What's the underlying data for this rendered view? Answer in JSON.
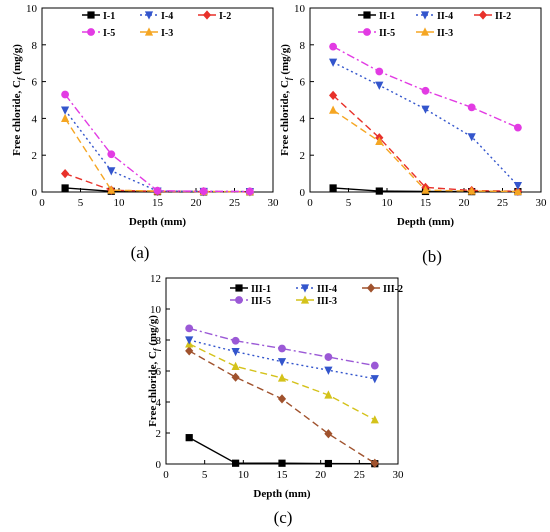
{
  "chart_data": [
    {
      "panel_label": "(a)",
      "type": "line",
      "xlabel": "Depth (mm)",
      "ylabel_main": "Free chloride, C",
      "ylabel_sub": "f",
      "ylabel_unit": " (mg/g)",
      "xlim": [
        0,
        30
      ],
      "ylim": [
        0,
        10
      ],
      "xticks": [
        0,
        5,
        10,
        15,
        20,
        25,
        30
      ],
      "yticks": [
        0,
        2,
        4,
        6,
        8,
        10
      ],
      "legend": "top-right",
      "x": [
        3,
        9,
        15,
        21,
        27
      ],
      "series": [
        {
          "name": "I-1",
          "color": "#000000",
          "marker": "square",
          "dash": "solid",
          "values": [
            0.22,
            0.04,
            0.02,
            0.01,
            0.01
          ]
        },
        {
          "name": "I-2",
          "color": "#e8312a",
          "marker": "diamond",
          "dash": "dash",
          "values": [
            1.0,
            0.1,
            0.03,
            0.02,
            0.01
          ]
        },
        {
          "name": "I-3",
          "color": "#f5a623",
          "marker": "triangle-up",
          "dash": "dash",
          "values": [
            4.0,
            0.1,
            0.05,
            0.03,
            0.02
          ]
        },
        {
          "name": "I-4",
          "color": "#3355cc",
          "marker": "triangle-down",
          "dash": "dot",
          "values": [
            4.45,
            1.15,
            0.05,
            0.03,
            0.02
          ]
        },
        {
          "name": "I-5",
          "color": "#e23be3",
          "marker": "circle",
          "dash": "dashdot",
          "values": [
            5.3,
            2.05,
            0.07,
            0.04,
            0.03
          ]
        }
      ]
    },
    {
      "panel_label": "(b)",
      "type": "line",
      "xlabel": "Depth (mm)",
      "ylabel_main": "Free chloride, C",
      "ylabel_sub": "f",
      "ylabel_unit": " (mg/g)",
      "xlim": [
        0,
        30
      ],
      "ylim": [
        0,
        10
      ],
      "xticks": [
        0,
        5,
        10,
        15,
        20,
        25,
        30
      ],
      "yticks": [
        0,
        2,
        4,
        6,
        8,
        10
      ],
      "legend": "top-right",
      "x": [
        3,
        9,
        15,
        21,
        27
      ],
      "series": [
        {
          "name": "II-1",
          "color": "#000000",
          "marker": "square",
          "dash": "solid",
          "values": [
            0.22,
            0.05,
            0.03,
            0.02,
            0.02
          ]
        },
        {
          "name": "II-2",
          "color": "#e8312a",
          "marker": "diamond",
          "dash": "dash",
          "values": [
            5.25,
            2.95,
            0.25,
            0.08,
            0.04
          ]
        },
        {
          "name": "II-3",
          "color": "#f5a623",
          "marker": "triangle-up",
          "dash": "dash",
          "values": [
            4.45,
            2.75,
            0.1,
            0.05,
            0.03
          ]
        },
        {
          "name": "II-4",
          "color": "#3355cc",
          "marker": "triangle-down",
          "dash": "dot",
          "values": [
            7.05,
            5.8,
            4.5,
            3.0,
            0.35
          ]
        },
        {
          "name": "II-5",
          "color": "#e23be3",
          "marker": "circle",
          "dash": "dashdot",
          "values": [
            7.9,
            6.55,
            5.5,
            4.6,
            3.5
          ]
        }
      ]
    },
    {
      "panel_label": "(c)",
      "type": "line",
      "xlabel": "Depth (mm)",
      "ylabel_main": "Free chloride, C",
      "ylabel_sub": "f",
      "ylabel_unit": " (mg/g)",
      "xlim": [
        0,
        30
      ],
      "ylim": [
        0,
        12
      ],
      "xticks": [
        0,
        5,
        10,
        15,
        20,
        25,
        30
      ],
      "yticks": [
        0,
        2,
        4,
        6,
        8,
        10,
        12
      ],
      "legend": "top-right",
      "x": [
        3,
        9,
        15,
        21,
        27
      ],
      "series": [
        {
          "name": "III-1",
          "color": "#000000",
          "marker": "square",
          "dash": "solid",
          "values": [
            1.7,
            0.05,
            0.05,
            0.03,
            0.02
          ]
        },
        {
          "name": "III-2",
          "color": "#a0522d",
          "marker": "diamond",
          "dash": "dash",
          "values": [
            7.3,
            5.6,
            4.2,
            1.95,
            0.05
          ]
        },
        {
          "name": "III-3",
          "color": "#d4c21a",
          "marker": "triangle-up",
          "dash": "dash",
          "values": [
            7.75,
            6.3,
            5.55,
            4.45,
            2.85
          ]
        },
        {
          "name": "III-4",
          "color": "#3355cc",
          "marker": "triangle-down",
          "dash": "dot",
          "values": [
            8.0,
            7.25,
            6.6,
            6.05,
            5.5
          ]
        },
        {
          "name": "III-5",
          "color": "#9b59d6",
          "marker": "circle",
          "dash": "dashdot",
          "values": [
            8.75,
            7.95,
            7.45,
            6.9,
            6.35
          ]
        }
      ]
    }
  ]
}
